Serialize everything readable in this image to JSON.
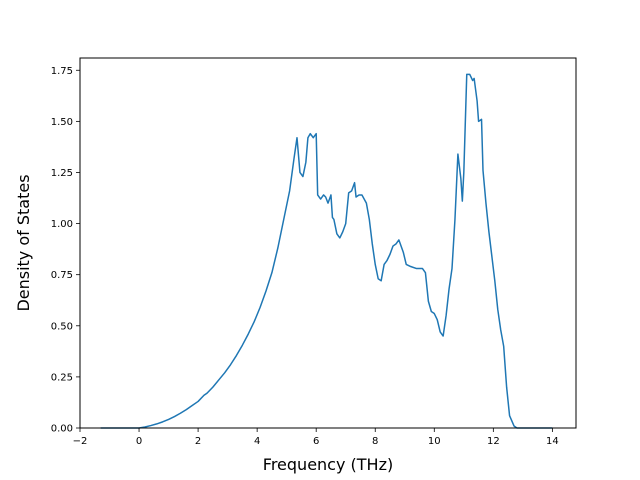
{
  "chart_data": {
    "type": "line",
    "title": "",
    "xlabel": "Frequency (THz)",
    "ylabel": "Density of States",
    "xlim": [
      -2,
      14.8
    ],
    "ylim": [
      0,
      1.81
    ],
    "xticks": [
      -2,
      0,
      2,
      4,
      6,
      8,
      10,
      12,
      14
    ],
    "yticks": [
      0.0,
      0.25,
      0.5,
      0.75,
      1.0,
      1.25,
      1.5,
      1.75
    ],
    "xtick_labels": [
      "−2",
      "0",
      "2",
      "4",
      "6",
      "8",
      "10",
      "12",
      "14"
    ],
    "ytick_labels": [
      "0.00",
      "0.25",
      "0.50",
      "0.75",
      "1.00",
      "1.25",
      "1.50",
      "1.75"
    ],
    "grid": false,
    "legend": "none",
    "line_color": "#1f77b4",
    "series": [
      {
        "x": [
          -1.3,
          -1.0,
          -0.5,
          0.0,
          0.2,
          0.4,
          0.6,
          0.8,
          1.0,
          1.2,
          1.4,
          1.6,
          1.8,
          2.0,
          2.2,
          2.3,
          2.5,
          2.7,
          2.9,
          3.1,
          3.3,
          3.5,
          3.7,
          3.9,
          4.1,
          4.3,
          4.5,
          4.7,
          4.9,
          5.1,
          5.25,
          5.35,
          5.45,
          5.55,
          5.65,
          5.72,
          5.8,
          5.9,
          6.0,
          6.05,
          6.15,
          6.25,
          6.32,
          6.4,
          6.5,
          6.55,
          6.6,
          6.7,
          6.8,
          6.9,
          7.0,
          7.1,
          7.2,
          7.3,
          7.35,
          7.45,
          7.55,
          7.7,
          7.8,
          7.9,
          8.0,
          8.1,
          8.2,
          8.3,
          8.4,
          8.5,
          8.6,
          8.7,
          8.8,
          8.95,
          9.05,
          9.2,
          9.4,
          9.6,
          9.7,
          9.8,
          9.9,
          10.0,
          10.1,
          10.2,
          10.3,
          10.4,
          10.5,
          10.6,
          10.7,
          10.8,
          10.9,
          10.95,
          11.0,
          11.1,
          11.2,
          11.3,
          11.35,
          11.45,
          11.5,
          11.6,
          11.65,
          11.7,
          11.75,
          11.85,
          11.95,
          12.05,
          12.15,
          12.25,
          12.35,
          12.45,
          12.55,
          12.7,
          12.8,
          13.0,
          13.5,
          14.0
        ],
        "y": [
          0.0,
          0.0,
          0.0,
          0.0,
          0.005,
          0.012,
          0.02,
          0.03,
          0.042,
          0.056,
          0.072,
          0.09,
          0.11,
          0.13,
          0.16,
          0.17,
          0.2,
          0.235,
          0.27,
          0.31,
          0.355,
          0.405,
          0.46,
          0.52,
          0.59,
          0.67,
          0.76,
          0.88,
          1.02,
          1.16,
          1.32,
          1.42,
          1.25,
          1.23,
          1.3,
          1.42,
          1.44,
          1.42,
          1.44,
          1.14,
          1.12,
          1.14,
          1.13,
          1.1,
          1.14,
          1.03,
          1.02,
          0.95,
          0.93,
          0.96,
          1.0,
          1.15,
          1.16,
          1.2,
          1.13,
          1.14,
          1.14,
          1.1,
          1.02,
          0.9,
          0.8,
          0.73,
          0.72,
          0.8,
          0.82,
          0.85,
          0.89,
          0.9,
          0.92,
          0.86,
          0.8,
          0.79,
          0.78,
          0.78,
          0.76,
          0.62,
          0.57,
          0.56,
          0.53,
          0.47,
          0.45,
          0.55,
          0.68,
          0.78,
          1.02,
          1.34,
          1.22,
          1.11,
          1.25,
          1.73,
          1.73,
          1.7,
          1.71,
          1.6,
          1.5,
          1.51,
          1.26,
          1.18,
          1.1,
          0.96,
          0.84,
          0.72,
          0.58,
          0.48,
          0.4,
          0.2,
          0.06,
          0.01,
          0.0,
          0.0,
          0.0,
          0.0
        ]
      }
    ]
  }
}
